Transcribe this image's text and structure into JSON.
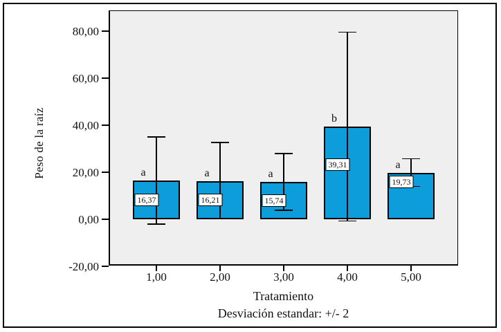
{
  "chart_data": {
    "type": "bar",
    "title": "",
    "xlabel": "Tratamiento",
    "ylabel": "Peso de la raíz",
    "caption": "Desviación estandar: +/- 2",
    "categories": [
      "1,00",
      "2,00",
      "3,00",
      "4,00",
      "5,00"
    ],
    "values": [
      16.37,
      16.21,
      15.74,
      39.31,
      19.73
    ],
    "value_labels": [
      "16,37",
      "16,21",
      "15,74",
      "39,31",
      "19,73"
    ],
    "group_letters": [
      "a",
      "a",
      "a",
      "b",
      "a"
    ],
    "error_high": [
      35.0,
      32.7,
      28.0,
      79.5,
      25.8
    ],
    "error_low": [
      -2.0,
      0.3,
      3.8,
      -0.7,
      14.0
    ],
    "yticks": [
      -20,
      0,
      20,
      40,
      60,
      80
    ],
    "ytick_labels": [
      "-20,00",
      "0,00",
      "20,00",
      "40,00",
      "60,00",
      "80,00"
    ],
    "ylim": [
      -20,
      88.8
    ],
    "grid": false,
    "legend": null,
    "colors": {
      "bar_fill": "#0d9dda",
      "bar_border": "#000000",
      "plot_bg": "#efefef",
      "frame_border": "#000000",
      "text": "#111111"
    }
  }
}
